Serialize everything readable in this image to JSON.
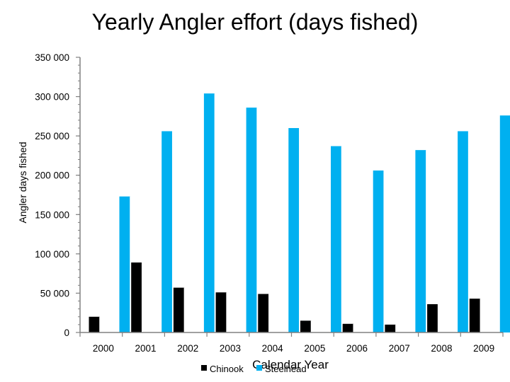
{
  "chart_data": {
    "type": "bar",
    "title": "Yearly Angler effort (days fished)",
    "xlabel": "Calendar Year",
    "ylabel": "Angler days fished",
    "categories": [
      "2000",
      "2001",
      "2002",
      "2003",
      "2004",
      "2005",
      "2006",
      "2007",
      "2008",
      "2009"
    ],
    "series": [
      {
        "name": "Chinook",
        "color": "#000000",
        "values": [
          20000,
          89000,
          57000,
          51000,
          49000,
          15000,
          11000,
          10000,
          36000,
          43000
        ]
      },
      {
        "name": "Steelhead",
        "color": "#00b0f0",
        "values": [
          173000,
          256000,
          304000,
          286000,
          260000,
          237000,
          206000,
          232000,
          256000,
          276000
        ]
      }
    ],
    "ylim": [
      0,
      350000
    ],
    "yticks": [
      0,
      50000,
      100000,
      150000,
      200000,
      250000,
      300000,
      350000
    ],
    "ytick_labels": [
      "0",
      "50 000",
      "100 000",
      "150 000",
      "200 000",
      "250 000",
      "300 000",
      "350 000"
    ],
    "grid": false,
    "legend_position": "bottom"
  }
}
